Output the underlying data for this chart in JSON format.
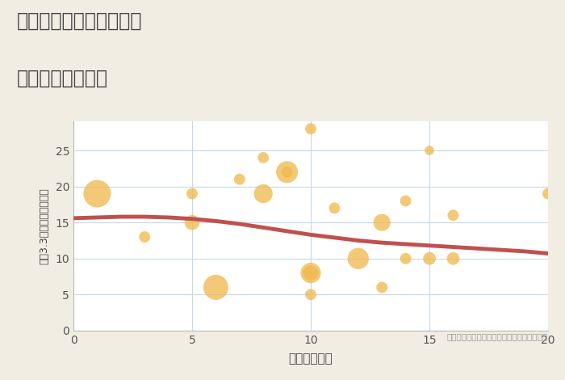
{
  "title_line1": "三重県四日市市緑丘町の",
  "title_line2": "駅距離別土地価格",
  "xlabel": "駅距離（分）",
  "ylabel": "坪（3.3㎡）単価（万円）",
  "bg_color": "#f2ede3",
  "plot_bg_color": "#ffffff",
  "bubble_color": "#f0b84b",
  "bubble_alpha": 0.75,
  "trend_color": "#c0504d",
  "trend_linewidth": 3.5,
  "xlim": [
    0,
    20
  ],
  "ylim": [
    0,
    29
  ],
  "yticks": [
    0,
    5,
    10,
    15,
    20,
    25
  ],
  "xticks": [
    0,
    5,
    10,
    15,
    20
  ],
  "annotation": "円の大きさは、取引のあった物件面積を示す",
  "scatter_x": [
    1,
    3,
    5,
    5,
    6,
    7,
    8,
    8,
    9,
    9,
    10,
    10,
    10,
    10,
    11,
    12,
    13,
    13,
    14,
    14,
    15,
    15,
    16,
    16,
    20
  ],
  "scatter_y": [
    19,
    13,
    15,
    19,
    6,
    21,
    24,
    19,
    22,
    22,
    28,
    8,
    8,
    5,
    17,
    10,
    15,
    6,
    18,
    10,
    25,
    10,
    16,
    10,
    19
  ],
  "scatter_s": [
    600,
    100,
    180,
    100,
    500,
    100,
    100,
    280,
    380,
    100,
    100,
    330,
    180,
    100,
    100,
    360,
    230,
    100,
    100,
    100,
    70,
    130,
    100,
    130,
    100
  ],
  "trend_x": [
    0,
    1,
    2,
    3,
    4,
    5,
    6,
    7,
    8,
    9,
    10,
    11,
    12,
    13,
    14,
    15,
    16,
    17,
    18,
    19,
    20
  ],
  "trend_y": [
    15.6,
    15.7,
    15.8,
    15.8,
    15.7,
    15.5,
    15.2,
    14.8,
    14.3,
    13.8,
    13.3,
    12.9,
    12.5,
    12.2,
    12.0,
    11.8,
    11.6,
    11.4,
    11.2,
    11.0,
    10.7
  ]
}
